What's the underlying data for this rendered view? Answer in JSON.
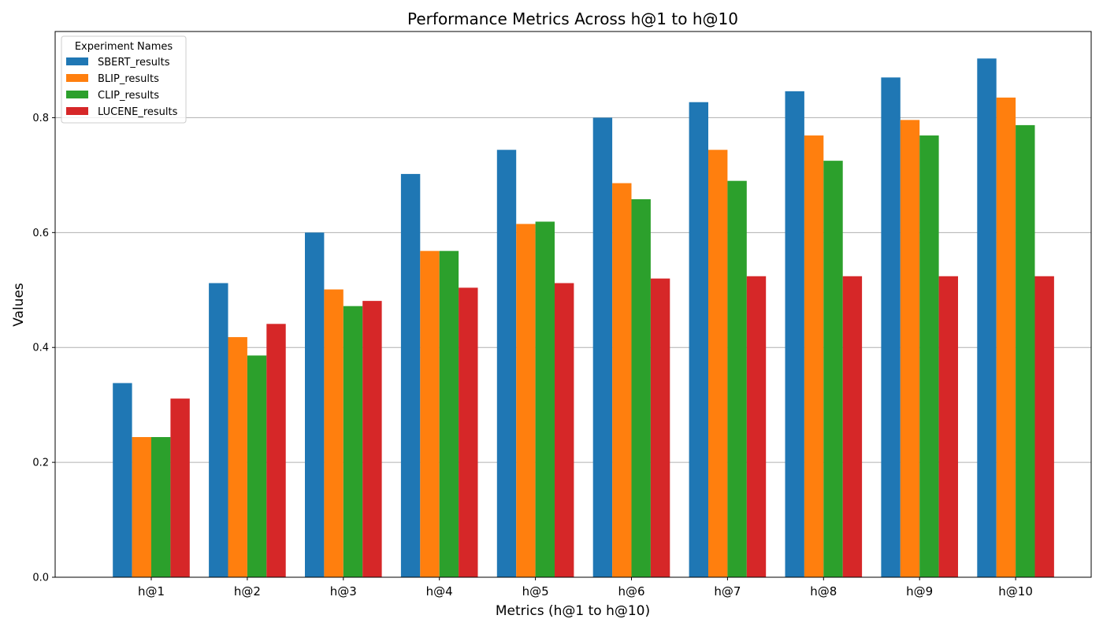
{
  "chart_data": {
    "type": "bar",
    "title": "Performance Metrics Across h@1 to h@10",
    "xlabel": "Metrics (h@1 to h@10)",
    "ylabel": "Values",
    "categories": [
      "h@1",
      "h@2",
      "h@3",
      "h@4",
      "h@5",
      "h@6",
      "h@7",
      "h@8",
      "h@9",
      "h@10"
    ],
    "ylim": [
      0,
      0.95
    ],
    "yticks": [
      0.0,
      0.2,
      0.4,
      0.6,
      0.8
    ],
    "ytick_labels": [
      "0.0",
      "0.2",
      "0.4",
      "0.6",
      "0.8"
    ],
    "grid": "horizontal",
    "legend": {
      "title": "Experiment Names",
      "position": "top-left"
    },
    "series": [
      {
        "name": "SBERT_results",
        "color": "#1f77b4",
        "values": [
          0.338,
          0.512,
          0.6,
          0.702,
          0.744,
          0.8,
          0.827,
          0.846,
          0.87,
          0.903
        ]
      },
      {
        "name": "BLIP_results",
        "color": "#ff7f0e",
        "values": [
          0.244,
          0.418,
          0.501,
          0.568,
          0.615,
          0.686,
          0.744,
          0.769,
          0.796,
          0.835
        ]
      },
      {
        "name": "CLIP_results",
        "color": "#2ca02c",
        "values": [
          0.244,
          0.386,
          0.472,
          0.568,
          0.619,
          0.658,
          0.69,
          0.725,
          0.769,
          0.787
        ]
      },
      {
        "name": "LUCENE_results",
        "color": "#d62728",
        "values": [
          0.311,
          0.441,
          0.481,
          0.504,
          0.512,
          0.52,
          0.524,
          0.524,
          0.524,
          0.524
        ]
      }
    ]
  }
}
